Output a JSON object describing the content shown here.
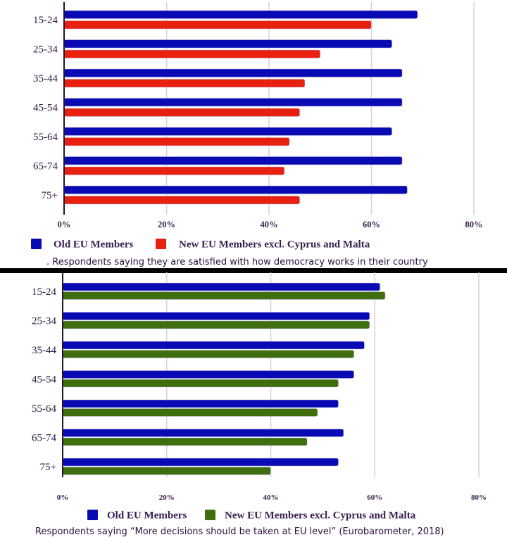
{
  "colors": {
    "old": "#0a0ab4",
    "new_chart1": "#e8200f",
    "new_chart2": "#3f6e0f",
    "grid": "#d8cfe0",
    "axis": "#2a1030",
    "text": "#3a2050"
  },
  "chart_data": [
    {
      "type": "bar",
      "orientation": "horizontal",
      "title": "",
      "caption": ". Respondents saying they are satisfied with how democracy works in their country",
      "categories": [
        "15-24",
        "25-34",
        "35-44",
        "45-54",
        "55-64",
        "65-74",
        "75+"
      ],
      "series": [
        {
          "name": "Old EU Members",
          "values": [
            69,
            64,
            66,
            66,
            64,
            66,
            67
          ]
        },
        {
          "name": "New EU Members excl. Cyprus and Malta",
          "values": [
            60,
            50,
            47,
            46,
            44,
            43,
            46
          ]
        }
      ],
      "xlabel": "",
      "ylabel": "",
      "xlim": [
        0,
        80
      ],
      "xticks": [
        "0%",
        "20%",
        "40%",
        "60%",
        "80%"
      ],
      "xtick_values": [
        0,
        20,
        40,
        60,
        80
      ],
      "grid": true,
      "legend": "bottom",
      "legend_entries": [
        "Old EU Members",
        "New EU Members excl. Cyprus and Malta"
      ]
    },
    {
      "type": "bar",
      "orientation": "horizontal",
      "title": "",
      "caption": "Respondents saying   “More decisions should be taken at EU level” (Eurobarometer, 2018)",
      "categories": [
        "15-24",
        "25-34",
        "35-44",
        "45-54",
        "55-64",
        "65-74",
        "75+"
      ],
      "series": [
        {
          "name": "Old EU Members",
          "values": [
            61,
            59,
            58,
            56,
            53,
            54,
            53
          ]
        },
        {
          "name": "New EU Members excl. Cyprus and Malta",
          "values": [
            62,
            59,
            56,
            53,
            49,
            47,
            40
          ]
        }
      ],
      "xlabel": "",
      "ylabel": "",
      "xlim": [
        0,
        80
      ],
      "xticks": [
        "0%",
        "20%",
        "40%",
        "60%",
        "80%"
      ],
      "xtick_values": [
        0,
        20,
        40,
        60,
        80
      ],
      "grid": true,
      "legend": "bottom",
      "legend_entries": [
        "Old EU Members",
        "New EU Members excl. Cyprus and Malta"
      ]
    }
  ]
}
